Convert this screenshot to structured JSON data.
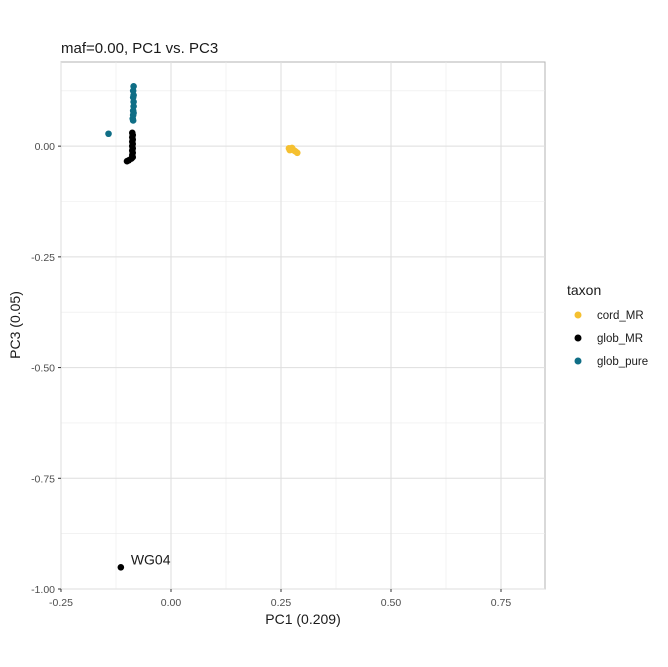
{
  "chart_data": {
    "type": "scatter",
    "title": "maf=0.00, PC1 vs. PC3",
    "xlabel": "PC1 (0.209)",
    "ylabel": "PC3 (0.05)",
    "xlim": [
      -0.25,
      0.85
    ],
    "ylim": [
      -1.0,
      0.19
    ],
    "xticks": [
      -0.25,
      0.0,
      0.25,
      0.5,
      0.75
    ],
    "xtick_labels": [
      "-0.25",
      "0.00",
      "0.25",
      "0.50",
      "0.75"
    ],
    "yticks": [
      -1.0,
      -0.75,
      -0.5,
      -0.25,
      0.0
    ],
    "ytick_labels": [
      "-1.00",
      "-0.75",
      "-0.50",
      "-0.25",
      "0.00"
    ],
    "grid": true,
    "legend": {
      "title": "taxon",
      "placement": "right"
    },
    "series": [
      {
        "name": "cord_MR",
        "color": "#f5c030",
        "points": [
          [
            0.268,
            -0.005
          ],
          [
            0.272,
            -0.008
          ],
          [
            0.276,
            -0.006
          ],
          [
            0.28,
            -0.01
          ],
          [
            0.283,
            -0.012
          ],
          [
            0.287,
            -0.015
          ],
          [
            0.275,
            -0.004
          ],
          [
            0.27,
            -0.009
          ]
        ]
      },
      {
        "name": "glob_MR",
        "color": "#000000",
        "points": [
          [
            -0.088,
            0.03
          ],
          [
            -0.087,
            0.025
          ],
          [
            -0.088,
            0.02
          ],
          [
            -0.087,
            0.015
          ],
          [
            -0.088,
            0.01
          ],
          [
            -0.087,
            0.005
          ],
          [
            -0.088,
            0.0
          ],
          [
            -0.087,
            -0.005
          ],
          [
            -0.088,
            -0.01
          ],
          [
            -0.087,
            -0.015
          ],
          [
            -0.088,
            -0.02
          ],
          [
            -0.087,
            -0.025
          ],
          [
            -0.09,
            -0.028
          ],
          [
            -0.096,
            -0.032
          ],
          [
            -0.1,
            -0.034
          ],
          [
            -0.114,
            -0.951
          ]
        ]
      },
      {
        "name": "glob_pure",
        "color": "#0f6e86",
        "points": [
          [
            -0.085,
            0.135
          ],
          [
            -0.086,
            0.125
          ],
          [
            -0.085,
            0.115
          ],
          [
            -0.086,
            0.11
          ],
          [
            -0.085,
            0.1
          ],
          [
            -0.085,
            0.09
          ],
          [
            -0.086,
            0.08
          ],
          [
            -0.085,
            0.075
          ],
          [
            -0.086,
            0.07
          ],
          [
            -0.087,
            0.062
          ],
          [
            -0.086,
            0.058
          ],
          [
            -0.142,
            0.028
          ]
        ]
      }
    ],
    "annotations": [
      {
        "text": "WG04",
        "x": -0.114,
        "y": -0.951
      }
    ]
  }
}
